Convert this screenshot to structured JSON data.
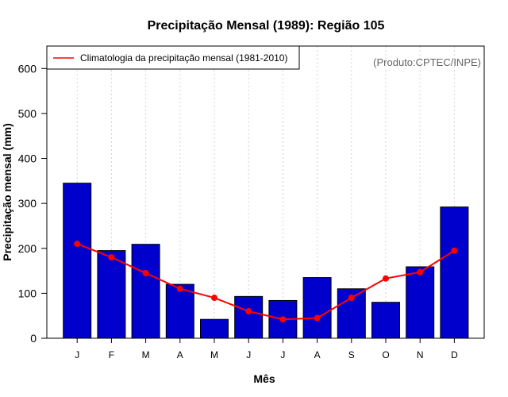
{
  "chart_data": {
    "type": "bar",
    "title": "Precipitação Mensal (1989): Região 105",
    "xlabel": "Mês",
    "ylabel": "Precipitação mensal (mm)",
    "ylim": [
      0,
      650
    ],
    "yticks": [
      0,
      100,
      200,
      300,
      400,
      500,
      600
    ],
    "categories": [
      "J",
      "F",
      "M",
      "A",
      "M",
      "J",
      "J",
      "A",
      "S",
      "O",
      "N",
      "D"
    ],
    "series": [
      {
        "name": "Precipitação mensal 1989",
        "type": "bar",
        "color": "#0000CD",
        "values": [
          345,
          195,
          209,
          120,
          42,
          93,
          84,
          135,
          110,
          80,
          159,
          292
        ]
      },
      {
        "name": "Climatologia da precipitação mensal (1981-2010)",
        "type": "line",
        "color": "#FF0000",
        "values": [
          210,
          180,
          145,
          110,
          90,
          60,
          42,
          45,
          90,
          133,
          147,
          195
        ]
      }
    ],
    "legend": {
      "label": "Climatologia da precipitação mensal (1981-2010)",
      "placement": "top-left"
    },
    "grid": true,
    "credit": "(Produto:CPTEC/INPE)"
  }
}
